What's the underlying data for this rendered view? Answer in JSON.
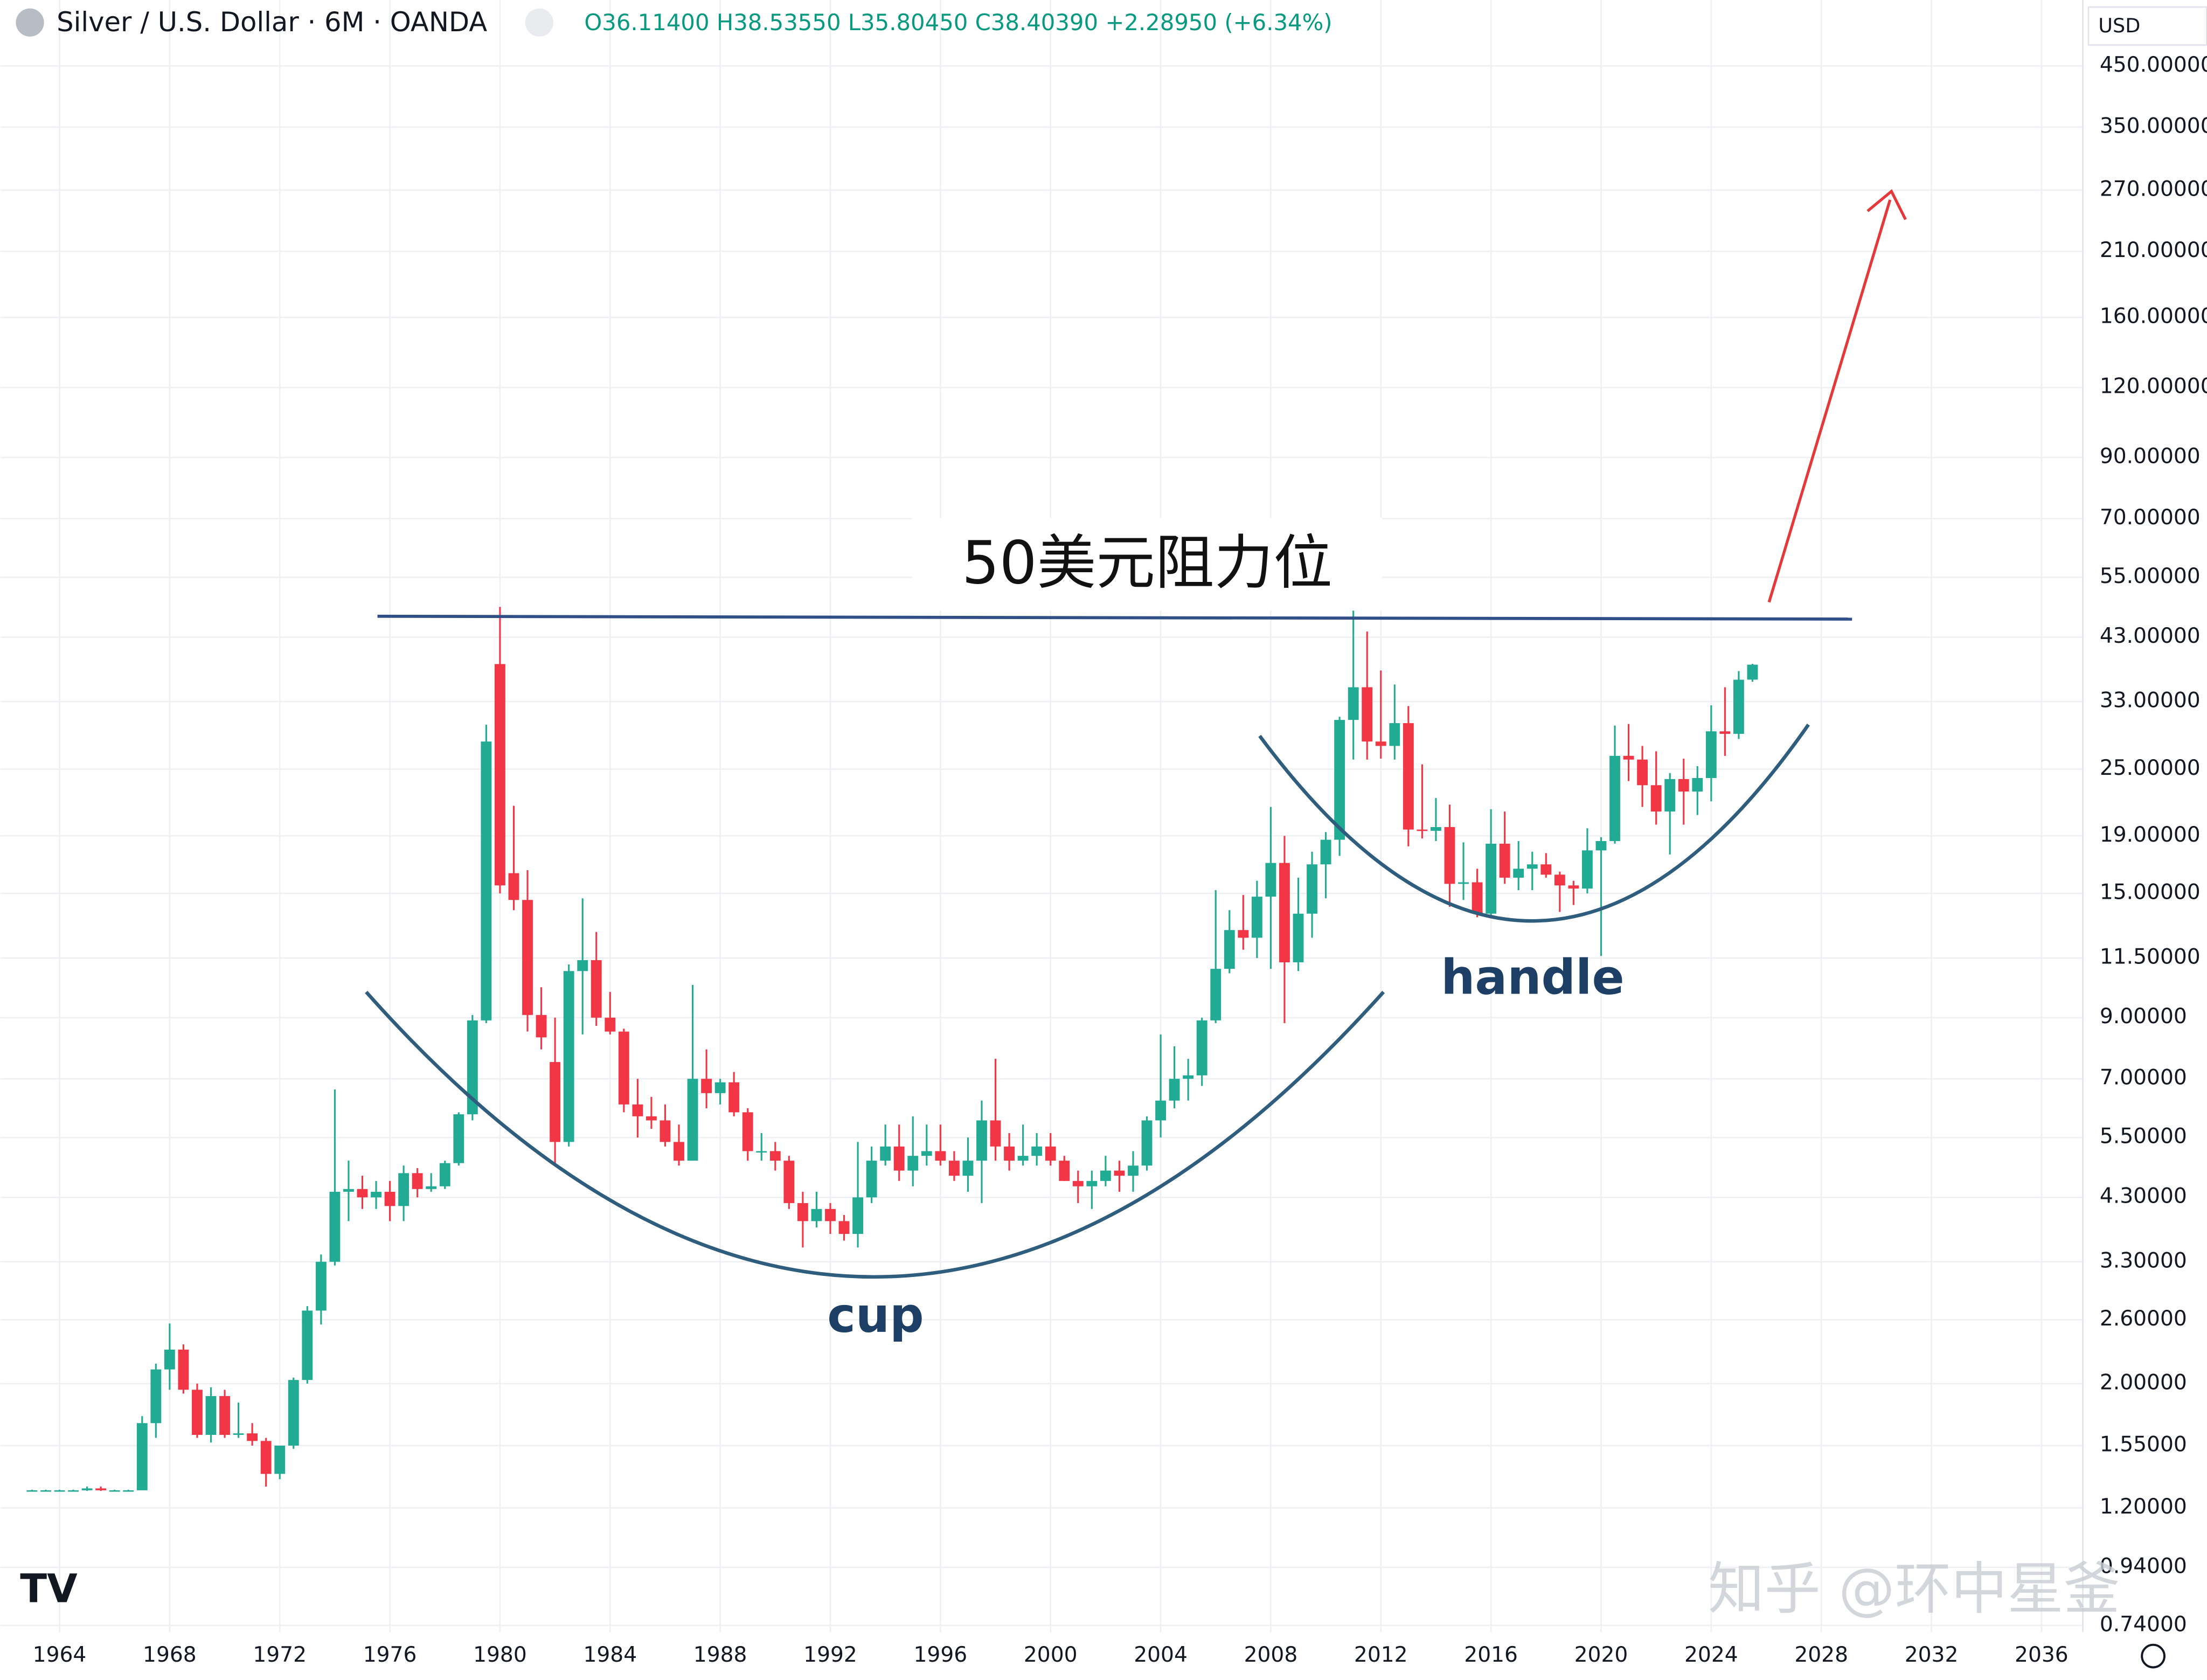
{
  "chart_data": {
    "type": "candlestick",
    "title": "Silver / U.S. Dollar · 6M · OANDA",
    "ohlc_label": "O36.11400 H38.53550 L35.80450 C38.40390 +2.28950 (+6.34%)",
    "currency": "USD",
    "annotations": {
      "resistance": "50美元阻力位",
      "cup": "cup",
      "handle": "handle"
    },
    "watermark": "知乎 @环中星釜",
    "log_scale": true,
    "grid": true,
    "up_color": "#22ab94",
    "down_color": "#f23645",
    "xlim": [
      1961.85,
      2037.5
    ],
    "xticks": [
      1964,
      1968,
      1972,
      1976,
      1980,
      1984,
      1988,
      1992,
      1996,
      2000,
      2004,
      2008,
      2012,
      2016,
      2020,
      2024,
      2028,
      2032,
      2036
    ],
    "ylim": [
      0.72,
      590
    ],
    "yticks": [
      {
        "value": 450,
        "label": "450.00000"
      },
      {
        "value": 350,
        "label": "350.00000"
      },
      {
        "value": 270,
        "label": "270.00000"
      },
      {
        "value": 210,
        "label": "210.00000"
      },
      {
        "value": 160,
        "label": "160.00000"
      },
      {
        "value": 120,
        "label": "120.00000"
      },
      {
        "value": 90,
        "label": "90.00000"
      },
      {
        "value": 70,
        "label": "70.00000"
      },
      {
        "value": 55,
        "label": "55.00000"
      },
      {
        "value": 43,
        "label": "43.00000"
      },
      {
        "value": 33,
        "label": "33.00000"
      },
      {
        "value": 25,
        "label": "25.00000"
      },
      {
        "value": 19,
        "label": "19.00000"
      },
      {
        "value": 15,
        "label": "15.00000"
      },
      {
        "value": 11.5,
        "label": "11.50000"
      },
      {
        "value": 9,
        "label": "9.00000"
      },
      {
        "value": 7,
        "label": "7.00000"
      },
      {
        "value": 5.5,
        "label": "5.50000"
      },
      {
        "value": 4.3,
        "label": "4.30000"
      },
      {
        "value": 3.3,
        "label": "3.30000"
      },
      {
        "value": 2.6,
        "label": "2.60000"
      },
      {
        "value": 2,
        "label": "2.00000"
      },
      {
        "value": 1.55,
        "label": "1.55000"
      },
      {
        "value": 1.2,
        "label": "1.20000"
      },
      {
        "value": 0.94,
        "label": "0.94000"
      },
      {
        "value": 0.74,
        "label": "0.74000"
      }
    ],
    "candles": [
      {
        "x": 1963.0,
        "open": 1.29,
        "high": 1.293,
        "low": 1.287,
        "close": 1.29
      },
      {
        "x": 1963.5,
        "open": 1.29,
        "high": 1.293,
        "low": 1.287,
        "close": 1.29
      },
      {
        "x": 1964.0,
        "open": 1.29,
        "high": 1.293,
        "low": 1.287,
        "close": 1.29
      },
      {
        "x": 1964.5,
        "open": 1.29,
        "high": 1.293,
        "low": 1.287,
        "close": 1.29
      },
      {
        "x": 1965.0,
        "open": 1.29,
        "high": 1.31,
        "low": 1.287,
        "close": 1.3
      },
      {
        "x": 1965.5,
        "open": 1.3,
        "high": 1.31,
        "low": 1.287,
        "close": 1.29
      },
      {
        "x": 1966.0,
        "open": 1.29,
        "high": 1.293,
        "low": 1.287,
        "close": 1.29
      },
      {
        "x": 1966.5,
        "open": 1.29,
        "high": 1.293,
        "low": 1.287,
        "close": 1.29
      },
      {
        "x": 1967.0,
        "open": 1.29,
        "high": 1.75,
        "low": 1.29,
        "close": 1.7
      },
      {
        "x": 1967.5,
        "open": 1.7,
        "high": 2.17,
        "low": 1.6,
        "close": 2.12
      },
      {
        "x": 1968.0,
        "open": 2.12,
        "high": 2.56,
        "low": 1.95,
        "close": 2.3
      },
      {
        "x": 1968.5,
        "open": 2.3,
        "high": 2.35,
        "low": 1.92,
        "close": 1.95
      },
      {
        "x": 1969.0,
        "open": 1.95,
        "high": 2.0,
        "low": 1.6,
        "close": 1.62
      },
      {
        "x": 1969.5,
        "open": 1.62,
        "high": 1.97,
        "low": 1.57,
        "close": 1.9
      },
      {
        "x": 1970.0,
        "open": 1.9,
        "high": 1.95,
        "low": 1.6,
        "close": 1.62
      },
      {
        "x": 1970.5,
        "open": 1.62,
        "high": 1.85,
        "low": 1.6,
        "close": 1.63
      },
      {
        "x": 1971.0,
        "open": 1.63,
        "high": 1.7,
        "low": 1.55,
        "close": 1.58
      },
      {
        "x": 1971.5,
        "open": 1.58,
        "high": 1.6,
        "low": 1.31,
        "close": 1.38
      },
      {
        "x": 1972.0,
        "open": 1.38,
        "high": 1.55,
        "low": 1.35,
        "close": 1.55
      },
      {
        "x": 1972.5,
        "open": 1.55,
        "high": 2.05,
        "low": 1.53,
        "close": 2.03
      },
      {
        "x": 1973.0,
        "open": 2.03,
        "high": 2.75,
        "low": 2.0,
        "close": 2.7
      },
      {
        "x": 1973.5,
        "open": 2.7,
        "high": 3.4,
        "low": 2.55,
        "close": 3.3
      },
      {
        "x": 1974.0,
        "open": 3.3,
        "high": 6.7,
        "low": 3.25,
        "close": 4.4
      },
      {
        "x": 1974.5,
        "open": 4.4,
        "high": 5.0,
        "low": 3.9,
        "close": 4.45
      },
      {
        "x": 1975.0,
        "open": 4.45,
        "high": 4.7,
        "low": 4.1,
        "close": 4.3
      },
      {
        "x": 1975.5,
        "open": 4.3,
        "high": 4.6,
        "low": 4.1,
        "close": 4.4
      },
      {
        "x": 1976.0,
        "open": 4.4,
        "high": 4.6,
        "low": 3.9,
        "close": 4.15
      },
      {
        "x": 1976.5,
        "open": 4.15,
        "high": 4.9,
        "low": 3.9,
        "close": 4.75
      },
      {
        "x": 1977.0,
        "open": 4.75,
        "high": 4.85,
        "low": 4.3,
        "close": 4.45
      },
      {
        "x": 1977.5,
        "open": 4.45,
        "high": 4.75,
        "low": 4.4,
        "close": 4.5
      },
      {
        "x": 1978.0,
        "open": 4.5,
        "high": 5.0,
        "low": 4.45,
        "close": 4.95
      },
      {
        "x": 1978.5,
        "open": 4.95,
        "high": 6.1,
        "low": 4.9,
        "close": 6.05
      },
      {
        "x": 1979.0,
        "open": 6.05,
        "high": 9.1,
        "low": 5.9,
        "close": 8.9
      },
      {
        "x": 1979.5,
        "open": 8.9,
        "high": 30.0,
        "low": 8.8,
        "close": 28.0
      },
      {
        "x": 1980.0,
        "open": 38.5,
        "high": 48.7,
        "low": 15.0,
        "close": 15.5
      },
      {
        "x": 1980.5,
        "open": 16.3,
        "high": 21.5,
        "low": 14.0,
        "close": 14.6
      },
      {
        "x": 1981.0,
        "open": 14.6,
        "high": 16.5,
        "low": 8.5,
        "close": 9.1
      },
      {
        "x": 1981.5,
        "open": 9.1,
        "high": 10.2,
        "low": 7.9,
        "close": 8.3
      },
      {
        "x": 1982.0,
        "open": 7.5,
        "high": 9.0,
        "low": 4.9,
        "close": 5.4
      },
      {
        "x": 1982.5,
        "open": 5.4,
        "high": 11.2,
        "low": 5.3,
        "close": 10.9
      },
      {
        "x": 1983.0,
        "open": 10.9,
        "high": 14.7,
        "low": 8.4,
        "close": 11.4
      },
      {
        "x": 1983.5,
        "open": 11.4,
        "high": 12.8,
        "low": 8.7,
        "close": 9.0
      },
      {
        "x": 1984.0,
        "open": 9.0,
        "high": 10.0,
        "low": 8.4,
        "close": 8.5
      },
      {
        "x": 1984.5,
        "open": 8.5,
        "high": 8.6,
        "low": 6.1,
        "close": 6.3
      },
      {
        "x": 1985.0,
        "open": 6.3,
        "high": 7.0,
        "low": 5.5,
        "close": 6.0
      },
      {
        "x": 1985.5,
        "open": 6.0,
        "high": 6.5,
        "low": 5.7,
        "close": 5.9
      },
      {
        "x": 1986.0,
        "open": 5.9,
        "high": 6.3,
        "low": 5.3,
        "close": 5.4
      },
      {
        "x": 1986.5,
        "open": 5.4,
        "high": 5.8,
        "low": 4.9,
        "close": 5.0
      },
      {
        "x": 1987.0,
        "open": 5.0,
        "high": 10.3,
        "low": 5.0,
        "close": 7.0
      },
      {
        "x": 1987.5,
        "open": 7.0,
        "high": 7.9,
        "low": 6.2,
        "close": 6.6
      },
      {
        "x": 1988.0,
        "open": 6.6,
        "high": 7.0,
        "low": 6.3,
        "close": 6.9
      },
      {
        "x": 1988.5,
        "open": 6.9,
        "high": 7.2,
        "low": 6.0,
        "close": 6.1
      },
      {
        "x": 1989.0,
        "open": 6.1,
        "high": 6.2,
        "low": 5.0,
        "close": 5.2
      },
      {
        "x": 1989.5,
        "open": 5.2,
        "high": 5.6,
        "low": 5.0,
        "close": 5.2
      },
      {
        "x": 1990.0,
        "open": 5.2,
        "high": 5.4,
        "low": 4.8,
        "close": 5.0
      },
      {
        "x": 1990.5,
        "open": 5.0,
        "high": 5.1,
        "low": 4.1,
        "close": 4.2
      },
      {
        "x": 1991.0,
        "open": 4.2,
        "high": 4.4,
        "low": 3.5,
        "close": 3.9
      },
      {
        "x": 1991.5,
        "open": 3.9,
        "high": 4.4,
        "low": 3.8,
        "close": 4.1
      },
      {
        "x": 1992.0,
        "open": 4.1,
        "high": 4.2,
        "low": 3.7,
        "close": 3.9
      },
      {
        "x": 1992.5,
        "open": 3.9,
        "high": 4.0,
        "low": 3.6,
        "close": 3.7
      },
      {
        "x": 1993.0,
        "open": 3.7,
        "high": 5.4,
        "low": 3.5,
        "close": 4.3
      },
      {
        "x": 1993.5,
        "open": 4.3,
        "high": 5.3,
        "low": 4.2,
        "close": 5.0
      },
      {
        "x": 1994.0,
        "open": 5.0,
        "high": 5.8,
        "low": 4.9,
        "close": 5.3
      },
      {
        "x": 1994.5,
        "open": 5.3,
        "high": 5.8,
        "low": 4.6,
        "close": 4.8
      },
      {
        "x": 1995.0,
        "open": 4.8,
        "high": 6.0,
        "low": 4.5,
        "close": 5.1
      },
      {
        "x": 1995.5,
        "open": 5.1,
        "high": 5.8,
        "low": 4.9,
        "close": 5.2
      },
      {
        "x": 1996.0,
        "open": 5.2,
        "high": 5.8,
        "low": 4.9,
        "close": 5.0
      },
      {
        "x": 1996.5,
        "open": 5.0,
        "high": 5.2,
        "low": 4.6,
        "close": 4.7
      },
      {
        "x": 1997.0,
        "open": 4.7,
        "high": 5.5,
        "low": 4.4,
        "close": 5.0
      },
      {
        "x": 1997.5,
        "open": 5.0,
        "high": 6.4,
        "low": 4.2,
        "close": 5.9
      },
      {
        "x": 1998.0,
        "open": 5.9,
        "high": 7.6,
        "low": 5.0,
        "close": 5.3
      },
      {
        "x": 1998.5,
        "open": 5.3,
        "high": 5.6,
        "low": 4.8,
        "close": 5.0
      },
      {
        "x": 1999.0,
        "open": 5.0,
        "high": 5.8,
        "low": 4.9,
        "close": 5.1
      },
      {
        "x": 1999.5,
        "open": 5.1,
        "high": 5.6,
        "low": 4.9,
        "close": 5.3
      },
      {
        "x": 2000.0,
        "open": 5.3,
        "high": 5.6,
        "low": 4.9,
        "close": 5.0
      },
      {
        "x": 2000.5,
        "open": 5.0,
        "high": 5.1,
        "low": 4.6,
        "close": 4.6
      },
      {
        "x": 2001.0,
        "open": 4.6,
        "high": 4.8,
        "low": 4.2,
        "close": 4.5
      },
      {
        "x": 2001.5,
        "open": 4.5,
        "high": 4.8,
        "low": 4.1,
        "close": 4.6
      },
      {
        "x": 2002.0,
        "open": 4.6,
        "high": 5.1,
        "low": 4.5,
        "close": 4.8
      },
      {
        "x": 2002.5,
        "open": 4.8,
        "high": 5.0,
        "low": 4.4,
        "close": 4.7
      },
      {
        "x": 2003.0,
        "open": 4.7,
        "high": 5.2,
        "low": 4.4,
        "close": 4.9
      },
      {
        "x": 2003.5,
        "open": 4.9,
        "high": 6.0,
        "low": 4.8,
        "close": 5.9
      },
      {
        "x": 2004.0,
        "open": 5.9,
        "high": 8.4,
        "low": 5.5,
        "close": 6.4
      },
      {
        "x": 2004.5,
        "open": 6.4,
        "high": 8.0,
        "low": 6.2,
        "close": 7.0
      },
      {
        "x": 2005.0,
        "open": 7.0,
        "high": 7.6,
        "low": 6.4,
        "close": 7.1
      },
      {
        "x": 2005.5,
        "open": 7.1,
        "high": 9.0,
        "low": 6.8,
        "close": 8.9
      },
      {
        "x": 2006.0,
        "open": 8.9,
        "high": 15.2,
        "low": 8.8,
        "close": 11.0
      },
      {
        "x": 2006.5,
        "open": 11.0,
        "high": 14.0,
        "low": 10.8,
        "close": 12.9
      },
      {
        "x": 2007.0,
        "open": 12.9,
        "high": 14.9,
        "low": 11.9,
        "close": 12.5
      },
      {
        "x": 2007.5,
        "open": 12.5,
        "high": 15.8,
        "low": 11.5,
        "close": 14.8
      },
      {
        "x": 2008.0,
        "open": 14.8,
        "high": 21.4,
        "low": 11.0,
        "close": 17.0
      },
      {
        "x": 2008.5,
        "open": 17.0,
        "high": 19.0,
        "low": 8.8,
        "close": 11.3
      },
      {
        "x": 2009.0,
        "open": 11.3,
        "high": 16.0,
        "low": 10.9,
        "close": 13.8
      },
      {
        "x": 2009.5,
        "open": 13.8,
        "high": 17.8,
        "low": 12.5,
        "close": 16.9
      },
      {
        "x": 2010.0,
        "open": 16.9,
        "high": 19.3,
        "low": 14.7,
        "close": 18.7
      },
      {
        "x": 2010.5,
        "open": 18.7,
        "high": 31.0,
        "low": 17.5,
        "close": 30.6
      },
      {
        "x": 2011.0,
        "open": 30.6,
        "high": 49.8,
        "low": 26.0,
        "close": 35.0
      },
      {
        "x": 2011.5,
        "open": 35.0,
        "high": 44.0,
        "low": 26.0,
        "close": 28.0
      },
      {
        "x": 2012.0,
        "open": 28.0,
        "high": 37.5,
        "low": 26.1,
        "close": 27.5
      },
      {
        "x": 2012.5,
        "open": 27.5,
        "high": 35.4,
        "low": 26.0,
        "close": 30.2
      },
      {
        "x": 2013.0,
        "open": 30.2,
        "high": 32.4,
        "low": 18.2,
        "close": 19.5
      },
      {
        "x": 2013.5,
        "open": 19.5,
        "high": 25.5,
        "low": 18.8,
        "close": 19.4
      },
      {
        "x": 2014.0,
        "open": 19.4,
        "high": 22.2,
        "low": 18.6,
        "close": 19.7
      },
      {
        "x": 2014.5,
        "open": 19.7,
        "high": 21.6,
        "low": 14.2,
        "close": 15.6
      },
      {
        "x": 2015.0,
        "open": 15.6,
        "high": 18.5,
        "low": 14.6,
        "close": 15.7
      },
      {
        "x": 2015.5,
        "open": 15.7,
        "high": 16.6,
        "low": 13.6,
        "close": 13.8
      },
      {
        "x": 2016.0,
        "open": 13.8,
        "high": 21.2,
        "low": 13.7,
        "close": 18.4
      },
      {
        "x": 2016.5,
        "open": 18.4,
        "high": 21.0,
        "low": 15.6,
        "close": 16.0
      },
      {
        "x": 2017.0,
        "open": 16.0,
        "high": 18.6,
        "low": 15.2,
        "close": 16.6
      },
      {
        "x": 2017.5,
        "open": 16.6,
        "high": 17.8,
        "low": 15.2,
        "close": 16.9
      },
      {
        "x": 2018.0,
        "open": 16.9,
        "high": 17.7,
        "low": 16.0,
        "close": 16.2
      },
      {
        "x": 2018.5,
        "open": 16.2,
        "high": 16.4,
        "low": 13.9,
        "close": 15.5
      },
      {
        "x": 2019.0,
        "open": 15.5,
        "high": 15.8,
        "low": 14.3,
        "close": 15.3
      },
      {
        "x": 2019.5,
        "open": 15.3,
        "high": 19.6,
        "low": 15.0,
        "close": 17.9
      },
      {
        "x": 2020.0,
        "open": 17.9,
        "high": 18.9,
        "low": 11.6,
        "close": 18.6
      },
      {
        "x": 2020.5,
        "open": 18.6,
        "high": 29.9,
        "low": 18.4,
        "close": 26.4
      },
      {
        "x": 2021.0,
        "open": 26.4,
        "high": 30.1,
        "low": 23.8,
        "close": 26.0
      },
      {
        "x": 2021.5,
        "open": 26.0,
        "high": 27.5,
        "low": 21.4,
        "close": 23.4
      },
      {
        "x": 2022.0,
        "open": 23.4,
        "high": 26.9,
        "low": 19.9,
        "close": 21.0
      },
      {
        "x": 2022.5,
        "open": 21.0,
        "high": 24.6,
        "low": 17.6,
        "close": 24.0
      },
      {
        "x": 2023.0,
        "open": 24.0,
        "high": 26.1,
        "low": 19.9,
        "close": 22.8
      },
      {
        "x": 2023.5,
        "open": 22.8,
        "high": 25.3,
        "low": 20.7,
        "close": 24.1
      },
      {
        "x": 2024.0,
        "open": 24.1,
        "high": 32.5,
        "low": 21.9,
        "close": 29.2
      },
      {
        "x": 2024.5,
        "open": 29.2,
        "high": 35.0,
        "low": 26.4,
        "close": 28.9
      },
      {
        "x": 2025.0,
        "open": 28.9,
        "high": 37.4,
        "low": 28.3,
        "close": 36.1
      },
      {
        "x": 2025.5,
        "open": 36.114,
        "high": 38.5355,
        "low": 35.8045,
        "close": 38.4039
      }
    ]
  }
}
